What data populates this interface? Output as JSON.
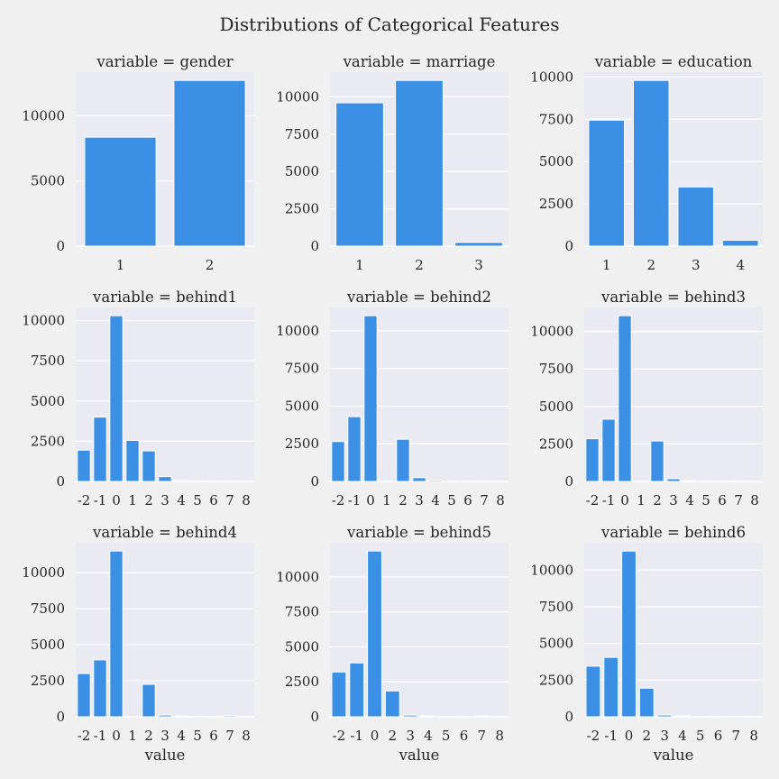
{
  "figure_title": "Distributions of Categorical Features",
  "bar_color": "#3b8fe4",
  "background_color": "#f0f0f0",
  "plot_background": "#eaeaf2",
  "xlabel": "value",
  "chart_data": [
    {
      "type": "bar",
      "title": "variable = gender",
      "categories": [
        "1",
        "2"
      ],
      "values": [
        8350,
        12700
      ],
      "yticks": [
        0,
        5000,
        10000
      ],
      "ylim": [
        0,
        13335
      ],
      "xlabel": "",
      "ylabel": ""
    },
    {
      "type": "bar",
      "title": "variable = marriage",
      "categories": [
        "1",
        "2",
        "3"
      ],
      "values": [
        9600,
        11100,
        250
      ],
      "yticks": [
        0,
        2500,
        5000,
        7500,
        10000
      ],
      "ylim": [
        0,
        11655
      ],
      "xlabel": "",
      "ylabel": ""
    },
    {
      "type": "bar",
      "title": "variable = education",
      "categories": [
        "1",
        "2",
        "3",
        "4"
      ],
      "values": [
        7450,
        9800,
        3500,
        350
      ],
      "yticks": [
        0,
        2500,
        5000,
        7500,
        10000
      ],
      "ylim": [
        0,
        10290
      ],
      "xlabel": "",
      "ylabel": ""
    },
    {
      "type": "bar",
      "title": "variable = behind1",
      "categories": [
        "-2",
        "-1",
        "0",
        "1",
        "2",
        "3",
        "4",
        "5",
        "6",
        "7",
        "8"
      ],
      "values": [
        1950,
        4000,
        10300,
        2550,
        1900,
        300,
        60,
        30,
        15,
        15,
        15
      ],
      "yticks": [
        0,
        2500,
        5000,
        7500,
        10000
      ],
      "ylim": [
        0,
        10815
      ],
      "xlabel": "",
      "ylabel": ""
    },
    {
      "type": "bar",
      "title": "variable = behind2",
      "categories": [
        "-2",
        "-1",
        "0",
        "1",
        "2",
        "3",
        "4",
        "5",
        "6",
        "7",
        "8"
      ],
      "values": [
        2650,
        4300,
        11000,
        30,
        2800,
        250,
        80,
        30,
        15,
        25,
        10
      ],
      "yticks": [
        0,
        2500,
        5000,
        7500,
        10000
      ],
      "ylim": [
        0,
        11550
      ],
      "xlabel": "",
      "ylabel": ""
    },
    {
      "type": "bar",
      "title": "variable = behind3",
      "categories": [
        "-2",
        "-1",
        "0",
        "1",
        "2",
        "3",
        "4",
        "5",
        "6",
        "7",
        "8"
      ],
      "values": [
        2850,
        4150,
        11050,
        10,
        2700,
        180,
        60,
        30,
        20,
        30,
        10
      ],
      "yticks": [
        0,
        2500,
        5000,
        7500,
        10000
      ],
      "ylim": [
        0,
        11600
      ],
      "xlabel": "",
      "ylabel": ""
    },
    {
      "type": "bar",
      "title": "variable = behind4",
      "categories": [
        "-2",
        "-1",
        "0",
        "1",
        "2",
        "3",
        "4",
        "5",
        "6",
        "7",
        "8"
      ],
      "values": [
        3000,
        3950,
        11500,
        5,
        2250,
        120,
        60,
        30,
        10,
        80,
        5
      ],
      "yticks": [
        0,
        2500,
        5000,
        7500,
        10000
      ],
      "ylim": [
        0,
        12075
      ],
      "xlabel": "value",
      "ylabel": ""
    },
    {
      "type": "bar",
      "title": "variable = behind5",
      "categories": [
        "-2",
        "-1",
        "0",
        "2",
        "3",
        "4",
        "5",
        "6",
        "7",
        "8"
      ],
      "values": [
        3200,
        3850,
        11850,
        1850,
        120,
        60,
        20,
        10,
        60,
        5
      ],
      "yticks": [
        0,
        2500,
        5000,
        7500,
        10000
      ],
      "ylim": [
        0,
        12440
      ],
      "xlabel": "value",
      "ylabel": ""
    },
    {
      "type": "bar",
      "title": "variable = behind6",
      "categories": [
        "-2",
        "-1",
        "0",
        "2",
        "3",
        "4",
        "5",
        "6",
        "7",
        "8"
      ],
      "values": [
        3450,
        4050,
        11300,
        1950,
        120,
        60,
        20,
        10,
        30,
        5
      ],
      "yticks": [
        0,
        2500,
        5000,
        7500,
        10000
      ],
      "ylim": [
        0,
        11865
      ],
      "xlabel": "value",
      "ylabel": ""
    }
  ]
}
